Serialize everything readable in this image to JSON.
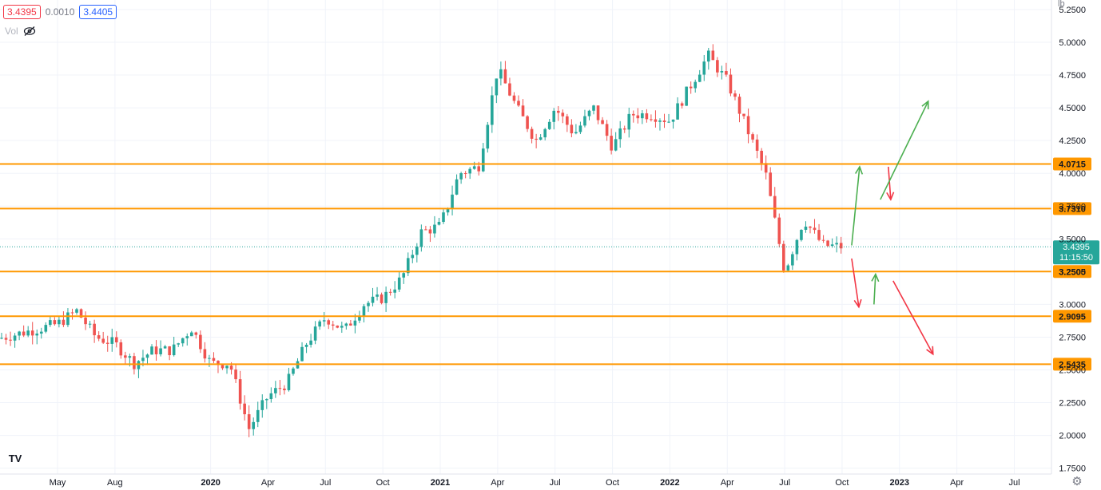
{
  "legend": {
    "bid": "3.4395",
    "spread": "0.0010",
    "ask": "3.4405",
    "volume_label": "Vol",
    "volume_icon": "eye-crossed-icon"
  },
  "axis_unit": "lb",
  "logo": "TV",
  "settings_icon": "gear-icon",
  "colors": {
    "up": "#26a69a",
    "down": "#ef5350",
    "level": "#ff9800",
    "price_tag": "#26a69a",
    "arrow_up": "#4caf50",
    "arrow_down": "#f23645",
    "grid": "#f0f3fa"
  },
  "chart_data": {
    "type": "candlestick",
    "yaxis": {
      "ticks": [
        "5.2500",
        "5.0000",
        "4.7500",
        "4.5000",
        "4.2500",
        "4.0000",
        "3.7500",
        "3.5000",
        "3.2500",
        "3.0000",
        "2.7500",
        "2.5000",
        "2.2500",
        "2.0000",
        "1.7500"
      ],
      "min": 1.75,
      "max": 5.25
    },
    "xaxis": {
      "ticks": [
        "May",
        "Aug",
        "2020",
        "Apr",
        "Jul",
        "Oct",
        "2021",
        "Apr",
        "Jul",
        "Oct",
        "2022",
        "Apr",
        "Jul",
        "Oct",
        "2023",
        "Apr",
        "Jul"
      ],
      "bold": [
        "2020",
        "2021",
        "2022",
        "2023"
      ]
    },
    "levels": [
      {
        "label": "4.0715",
        "value": 4.0715
      },
      {
        "label": "3.7310",
        "value": 3.731
      },
      {
        "label": "3.2505",
        "value": 3.2505
      },
      {
        "label": "2.9095",
        "value": 2.9095
      },
      {
        "label": "2.5435",
        "value": 2.5435
      }
    ],
    "current": {
      "label": "3.4395",
      "value": 3.4395,
      "countdown": "11:15:50"
    },
    "anchors": [
      [
        "May-2019",
        2.85
      ],
      [
        "Jun-2019",
        2.95
      ],
      [
        "Jul-2019",
        2.75
      ],
      [
        "Aug-2019",
        2.7
      ],
      [
        "Sep-2019",
        2.55
      ],
      [
        "Oct-2019",
        2.65
      ],
      [
        "Nov-2019",
        2.65
      ],
      [
        "Dec-2019",
        2.82
      ],
      [
        "Jan-2020",
        2.55
      ],
      [
        "Feb-2020",
        2.55
      ],
      [
        "Mar-2020",
        2.05
      ],
      [
        "Apr-2020",
        2.3
      ],
      [
        "May-2020",
        2.4
      ],
      [
        "Jun-2020",
        2.7
      ],
      [
        "Jul-2020",
        2.9
      ],
      [
        "Aug-2020",
        2.8
      ],
      [
        "Sep-2020",
        3.0
      ],
      [
        "Oct-2020",
        3.05
      ],
      [
        "Nov-2020",
        3.2
      ],
      [
        "Dec-2020",
        3.55
      ],
      [
        "Jan-2021",
        3.6
      ],
      [
        "Feb-2021",
        4.0
      ],
      [
        "Mar-2021",
        4.05
      ],
      [
        "Apr-2021",
        4.8
      ],
      [
        "May-2021",
        4.5
      ],
      [
        "Jun-2021",
        4.25
      ],
      [
        "Jul-2021",
        4.5
      ],
      [
        "Aug-2021",
        4.3
      ],
      [
        "Sep-2021",
        4.5
      ],
      [
        "Oct-2021",
        4.2
      ],
      [
        "Nov-2021",
        4.45
      ],
      [
        "Dec-2021",
        4.45
      ],
      [
        "Jan-2022",
        4.4
      ],
      [
        "Feb-2022",
        4.65
      ],
      [
        "Mar-2022",
        4.9
      ],
      [
        "Apr-2022",
        4.7
      ],
      [
        "May-2022",
        4.35
      ],
      [
        "Jun-2022",
        4.0
      ],
      [
        "Jul-2022",
        3.25
      ],
      [
        "Aug-2022",
        3.65
      ],
      [
        "Sep-2022",
        3.45
      ],
      [
        "Oct-2022",
        3.44
      ]
    ],
    "scenario_arrows": [
      {
        "direction": "up",
        "from": [
          "Oct-2022",
          3.45
        ],
        "to": [
          "Nov-2022",
          4.05
        ]
      },
      {
        "direction": "down",
        "from": [
          "Dec-2022",
          4.05
        ],
        "to": [
          "Dec-2022",
          3.8
        ]
      },
      {
        "direction": "up",
        "from": [
          "Dec-2022",
          3.8
        ],
        "to": [
          "Feb-2023",
          4.55
        ]
      },
      {
        "direction": "down",
        "from": [
          "Oct-2022",
          3.35
        ],
        "to": [
          "Nov-2022",
          2.98
        ]
      },
      {
        "direction": "up",
        "from": [
          "Dec-2022",
          3.0
        ],
        "to": [
          "Dec-2022",
          3.23
        ]
      },
      {
        "direction": "down",
        "from": [
          "Jan-2023",
          3.18
        ],
        "to": [
          "Feb-2023",
          2.62
        ]
      }
    ]
  }
}
